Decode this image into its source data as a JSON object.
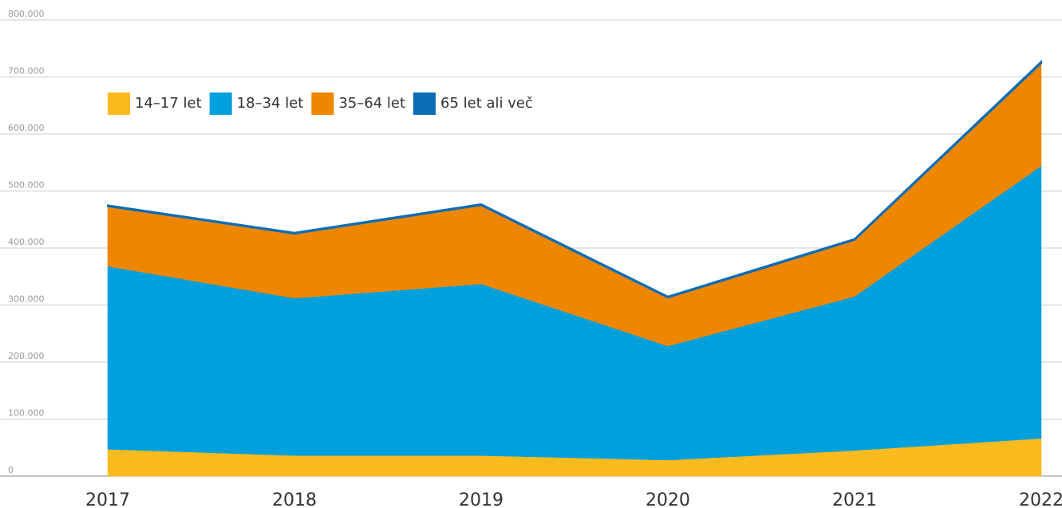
{
  "chart_data": {
    "type": "stacked_area",
    "categories": [
      "2017",
      "2018",
      "2019",
      "2020",
      "2021",
      "2022"
    ],
    "series": [
      {
        "name": "14–17 let",
        "color": "#fbba1e",
        "values": [
          47000,
          36000,
          36000,
          28000,
          45000,
          66000
        ]
      },
      {
        "name": "18–34 let",
        "color": "#00a0dc",
        "values": [
          321000,
          276000,
          301000,
          200000,
          270000,
          478000
        ]
      },
      {
        "name": "35–64 let",
        "color": "#ee8600",
        "values": [
          105000,
          113000,
          138000,
          85000,
          99000,
          180000
        ]
      },
      {
        "name": "65 let ali več",
        "color": "#0a6db5",
        "values": [
          2000,
          2000,
          2000,
          2000,
          2000,
          3000
        ]
      }
    ],
    "ylim": [
      0,
      800000
    ],
    "yticks": [
      0,
      {
        "value": 100000,
        "label": "100.000"
      },
      {
        "value": 200000,
        "label": "200.000"
      },
      {
        "value": 300000,
        "label": "300.000"
      },
      {
        "value": 400000,
        "label": "400.000"
      },
      {
        "value": 500000,
        "label": "500.000"
      },
      {
        "value": 600000,
        "label": "600.000"
      },
      {
        "value": 700000,
        "label": "700.000"
      },
      {
        "value": 800000,
        "label": "800.000"
      }
    ],
    "grid": true,
    "legend": "top-left"
  }
}
